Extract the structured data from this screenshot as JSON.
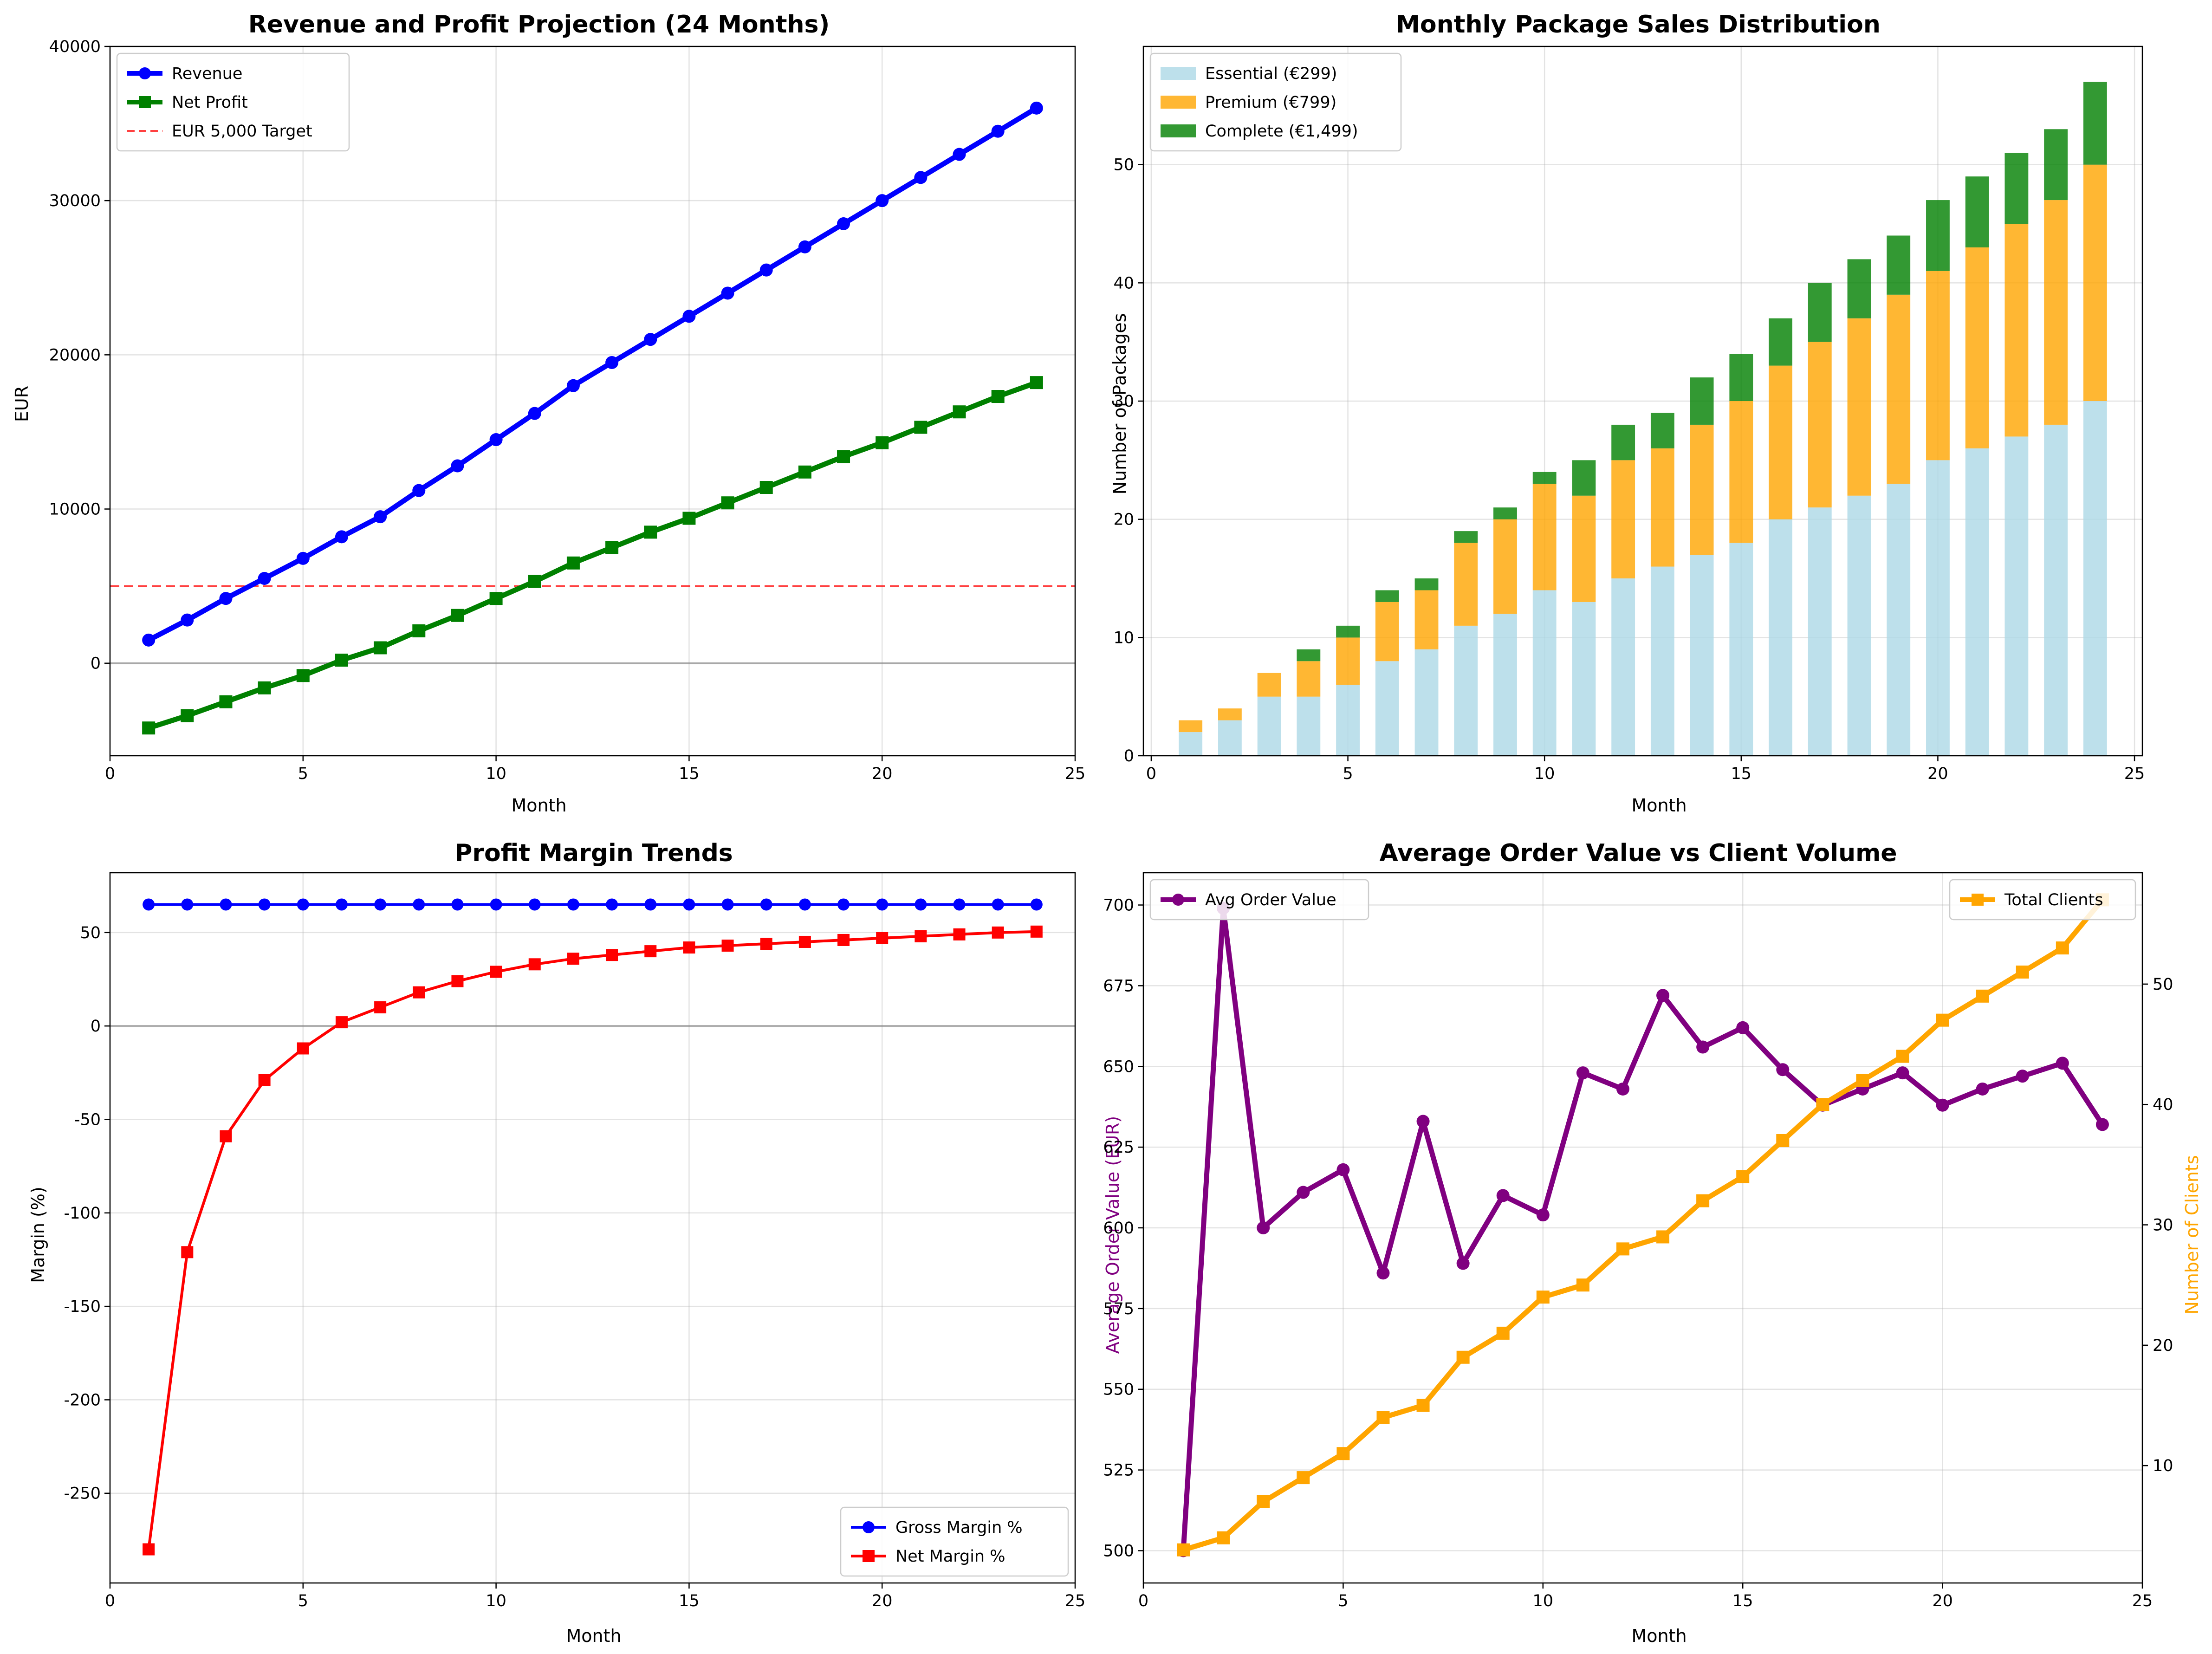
{
  "chart_data": [
    {
      "type": "line",
      "title": "Revenue and Profit Projection (24 Months)",
      "xlabel": "Month",
      "ylabel": "EUR",
      "xlim": [
        0,
        25
      ],
      "ylim": [
        -6000,
        40000
      ],
      "xticks": [
        0,
        5,
        10,
        15,
        20,
        25
      ],
      "yticks": [
        0,
        10000,
        20000,
        30000,
        40000
      ],
      "grid": true,
      "legend_position": "top-left",
      "x": [
        1,
        2,
        3,
        4,
        5,
        6,
        7,
        8,
        9,
        10,
        11,
        12,
        13,
        14,
        15,
        16,
        17,
        18,
        19,
        20,
        21,
        22,
        23,
        24
      ],
      "series": [
        {
          "name": "Revenue",
          "color": "#0000ff",
          "marker": "circle",
          "values": [
            1500,
            2800,
            4200,
            5500,
            6800,
            8200,
            9500,
            11200,
            12800,
            14500,
            16200,
            18000,
            19500,
            21000,
            22500,
            24000,
            25500,
            27000,
            28500,
            30000,
            31500,
            33000,
            34500,
            36000
          ]
        },
        {
          "name": "Net Profit",
          "color": "#008000",
          "marker": "square",
          "values": [
            -4200,
            -3400,
            -2500,
            -1600,
            -800,
            200,
            1000,
            2100,
            3100,
            4200,
            5300,
            6500,
            7500,
            8500,
            9400,
            10400,
            11400,
            12400,
            13400,
            14300,
            15300,
            16300,
            17300,
            18200
          ]
        }
      ],
      "reference_lines": [
        {
          "name": "EUR 5,000 Target",
          "y": 5000,
          "color": "#ff0000",
          "style": "dashed"
        },
        {
          "y": 0,
          "color": "#808080",
          "style": "solid"
        }
      ]
    },
    {
      "type": "bar",
      "stacked": true,
      "title": "Monthly Package Sales Distribution",
      "xlabel": "Month",
      "ylabel": "Number of Packages",
      "xlim": [
        -0.2,
        25.2
      ],
      "ylim": [
        0,
        60
      ],
      "xticks": [
        0,
        5,
        10,
        15,
        20,
        25
      ],
      "yticks": [
        0,
        10,
        20,
        30,
        40,
        50
      ],
      "grid": true,
      "legend_position": "top-left",
      "x": [
        1,
        2,
        3,
        4,
        5,
        6,
        7,
        8,
        9,
        10,
        11,
        12,
        13,
        14,
        15,
        16,
        17,
        18,
        19,
        20,
        21,
        22,
        23,
        24
      ],
      "series": [
        {
          "name": "Essential (€299)",
          "color": "#add8e6",
          "values": [
            2,
            3,
            5,
            5,
            6,
            8,
            9,
            11,
            12,
            14,
            13,
            15,
            16,
            17,
            18,
            20,
            21,
            22,
            23,
            25,
            26,
            27,
            28,
            30
          ]
        },
        {
          "name": "Premium (€799)",
          "color": "#ffa500",
          "values": [
            1,
            1,
            2,
            3,
            4,
            5,
            5,
            7,
            8,
            9,
            9,
            10,
            10,
            11,
            12,
            13,
            14,
            15,
            16,
            16,
            17,
            18,
            19,
            20
          ]
        },
        {
          "name": "Complete (€1,499)",
          "color": "#008000",
          "values": [
            0,
            0,
            0,
            1,
            1,
            1,
            1,
            1,
            1,
            1,
            3,
            3,
            3,
            4,
            4,
            4,
            5,
            5,
            5,
            6,
            6,
            6,
            6,
            7
          ]
        }
      ]
    },
    {
      "type": "line",
      "title": "Profit Margin Trends",
      "xlabel": "Month",
      "ylabel": "Margin (%)",
      "xlim": [
        0,
        25
      ],
      "ylim": [
        -298,
        82
      ],
      "xticks": [
        0,
        5,
        10,
        15,
        20,
        25
      ],
      "yticks": [
        -250,
        -200,
        -150,
        -100,
        -50,
        0,
        50
      ],
      "grid": true,
      "legend_position": "bottom-right",
      "x": [
        1,
        2,
        3,
        4,
        5,
        6,
        7,
        8,
        9,
        10,
        11,
        12,
        13,
        14,
        15,
        16,
        17,
        18,
        19,
        20,
        21,
        22,
        23,
        24
      ],
      "series": [
        {
          "name": "Gross Margin %",
          "color": "#0000ff",
          "marker": "circle",
          "values": [
            65,
            65,
            65,
            65,
            65,
            65,
            65,
            65,
            65,
            65,
            65,
            65,
            65,
            65,
            65,
            65,
            65,
            65,
            65,
            65,
            65,
            65,
            65,
            65
          ]
        },
        {
          "name": "Net Margin %",
          "color": "#ff0000",
          "marker": "square",
          "values": [
            -280,
            -121,
            -59,
            -29,
            -12,
            2,
            10,
            18,
            24,
            29,
            33,
            36,
            38,
            40,
            42,
            43,
            44,
            45,
            46,
            47,
            48,
            49,
            50,
            50.5
          ]
        }
      ],
      "reference_lines": [
        {
          "y": 0,
          "color": "#808080",
          "style": "solid"
        }
      ]
    },
    {
      "type": "line",
      "dual_axis": true,
      "title": "Average Order Value vs Client Volume",
      "xlabel": "Month",
      "ylabel": "Average Order Value (EUR)",
      "ylabel_right": "Number of Clients",
      "xlim": [
        0,
        25
      ],
      "ylim": [
        490,
        710
      ],
      "ylim_right": [
        0.25,
        59.25
      ],
      "xticks": [
        0,
        5,
        10,
        15,
        20,
        25
      ],
      "yticks": [
        500,
        525,
        550,
        575,
        600,
        625,
        650,
        675,
        700
      ],
      "yticks_right": [
        10,
        20,
        30,
        40,
        50
      ],
      "grid": true,
      "x": [
        1,
        2,
        3,
        4,
        5,
        6,
        7,
        8,
        9,
        10,
        11,
        12,
        13,
        14,
        15,
        16,
        17,
        18,
        19,
        20,
        21,
        22,
        23,
        24
      ],
      "series": [
        {
          "name": "Avg Order Value",
          "color": "#800080",
          "marker": "circle",
          "axis": "left",
          "legend_position": "top-left",
          "values": [
            500,
            699,
            600,
            611,
            618,
            586,
            633,
            589,
            610,
            604,
            648,
            643,
            672,
            656,
            662,
            649,
            638,
            643,
            648,
            638,
            643,
            647,
            651,
            632
          ]
        },
        {
          "name": "Total Clients",
          "color": "#ffa500",
          "marker": "square",
          "axis": "right",
          "legend_position": "top-right",
          "values": [
            3,
            4,
            7,
            9,
            11,
            14,
            15,
            19,
            21,
            24,
            25,
            28,
            29,
            32,
            34,
            37,
            40,
            42,
            44,
            47,
            49,
            51,
            53,
            57
          ]
        }
      ]
    }
  ]
}
